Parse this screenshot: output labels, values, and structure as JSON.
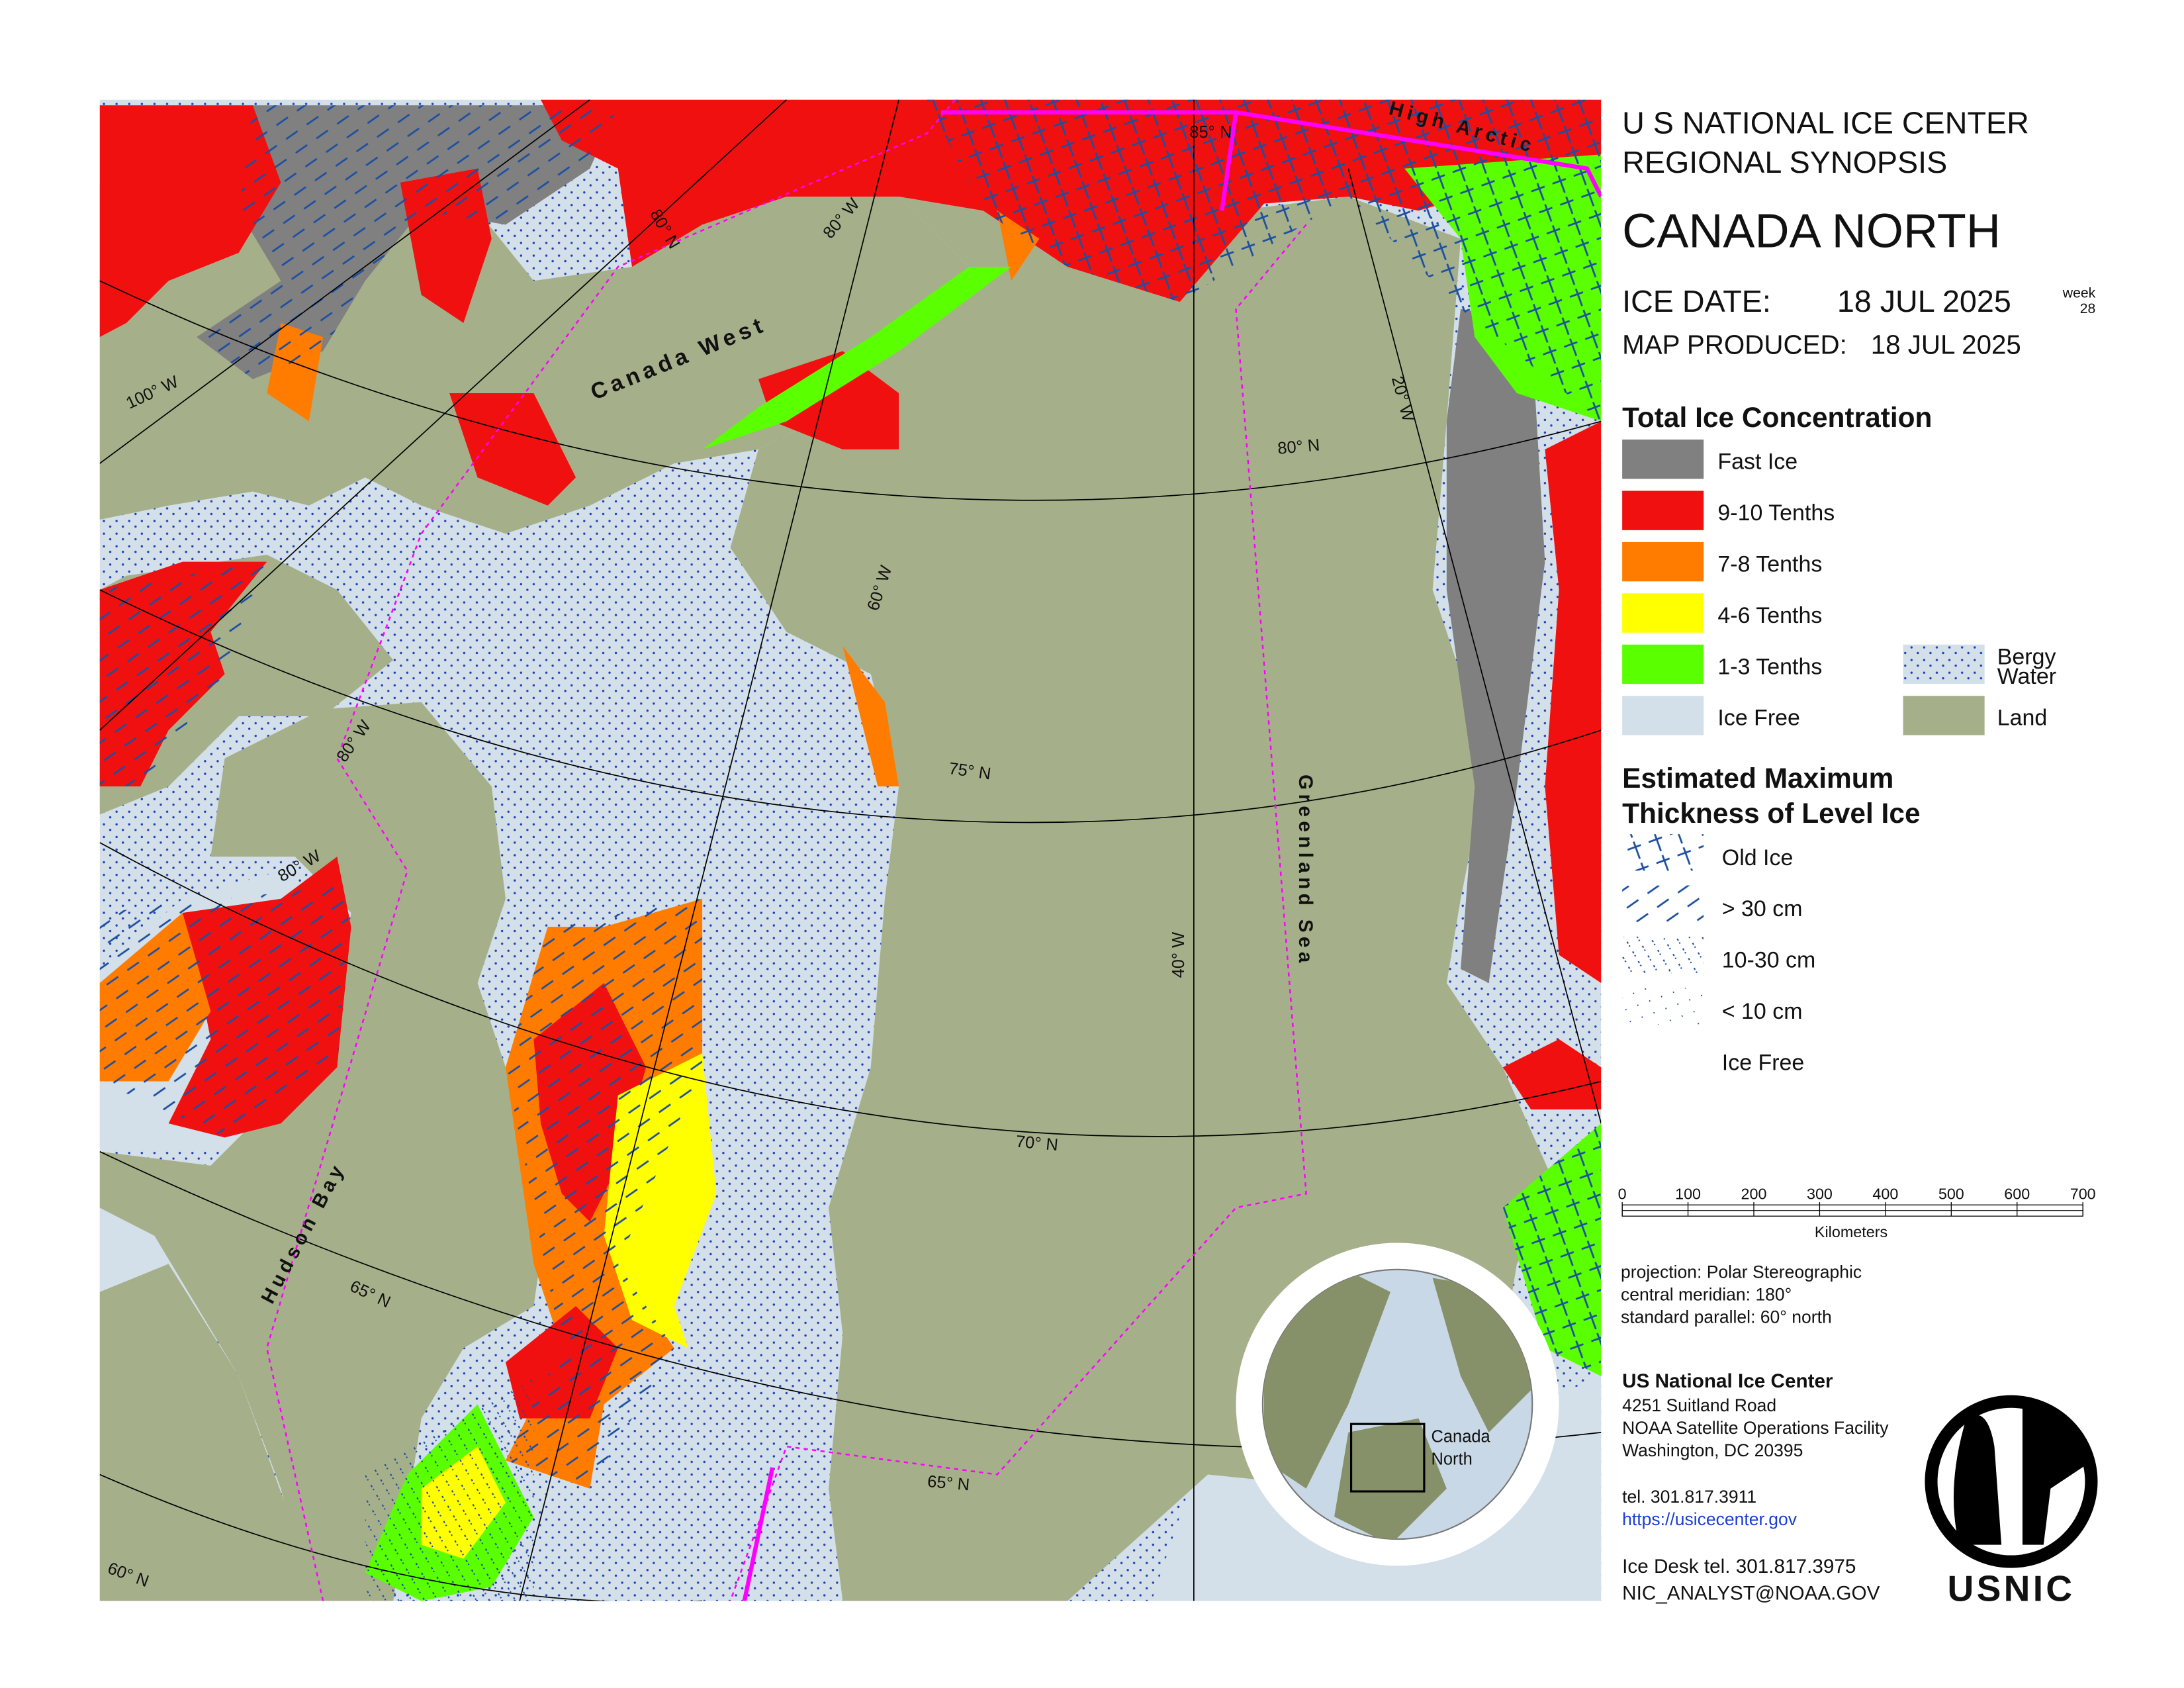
{
  "header": {
    "line1": "U S NATIONAL ICE CENTER",
    "line2": "REGIONAL SYNOPSIS",
    "region": "CANADA NORTH",
    "ice_date_label": "ICE DATE:",
    "ice_date": "18 JUL 2025",
    "week_label": "week",
    "week": 28,
    "map_produced_label": "MAP PRODUCED:",
    "map_produced": "18 JUL 2025"
  },
  "legend_concentration": {
    "title": "Total Ice Concentration",
    "items": [
      "Fast Ice",
      "9-10 Tenths",
      "7-8 Tenths",
      "4-6 Tenths",
      "1-3 Tenths",
      "Ice Free",
      "Bergy Water",
      "Land"
    ]
  },
  "legend_thickness": {
    "title_lines": [
      "Estimated Maximum",
      "Thickness of Level Ice"
    ],
    "items": [
      "Old Ice",
      "> 30 cm",
      "10-30 cm",
      "< 10 cm",
      "Ice Free"
    ]
  },
  "scale_bar": {
    "ticks": [
      0,
      100,
      200,
      300,
      400,
      500,
      600,
      700
    ],
    "unit": "Kilometers"
  },
  "projection": [
    "projection: Polar Stereographic",
    "central meridian: 180°",
    "standard parallel:  60° north"
  ],
  "contact": {
    "name": "US National Ice Center",
    "address": [
      "4251 Suitland Road",
      "NOAA Satellite Operations Facility",
      "Washington, DC  20395"
    ],
    "tel": "tel. 301.817.3911",
    "url": "https://usicecenter.gov",
    "ice_desk": "Ice Desk tel. 301.817.3975",
    "email": "NIC_ANALYST@NOAA.GOV"
  },
  "map": {
    "region_labels": [
      "Canada West",
      "High Arctic",
      "Greenland Sea",
      "Hudson Bay"
    ],
    "graticule_labels": [
      "80° N",
      "80° W",
      "100° W",
      "60° W",
      "75° N",
      "40° W",
      "70° N",
      "65° N",
      "65° N",
      "60° N",
      "80° W",
      "85° N",
      "20° W",
      "80° N",
      "80° W"
    ],
    "inset_label": [
      "Canada",
      "North"
    ]
  },
  "logo": "USNIC"
}
